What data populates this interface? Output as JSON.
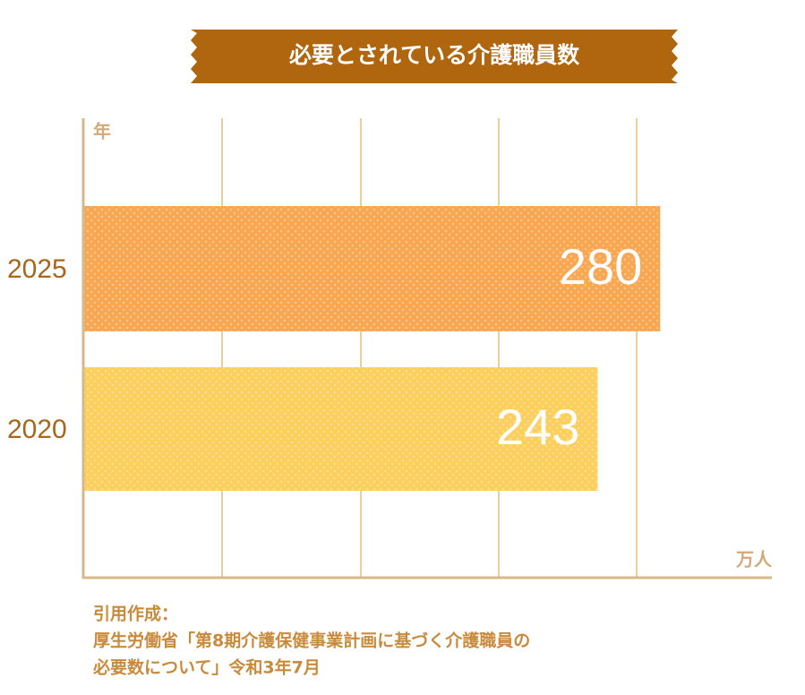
{
  "chart_data": {
    "type": "hbar",
    "title": "必要とされている介護職員数",
    "y_label": "年",
    "x_label": "万人",
    "categories": [
      "2025",
      "2020"
    ],
    "values": [
      280,
      243
    ],
    "colors": [
      "#f9a650",
      "#fcce5c"
    ],
    "xlim": [
      -61,
      346
    ]
  },
  "source": {
    "heading": "引用作成：",
    "lines": [
      "厚生労働省「第8期介護保健事業計画に基づく介護職員の",
      "必要数について」令和3年7月"
    ]
  }
}
